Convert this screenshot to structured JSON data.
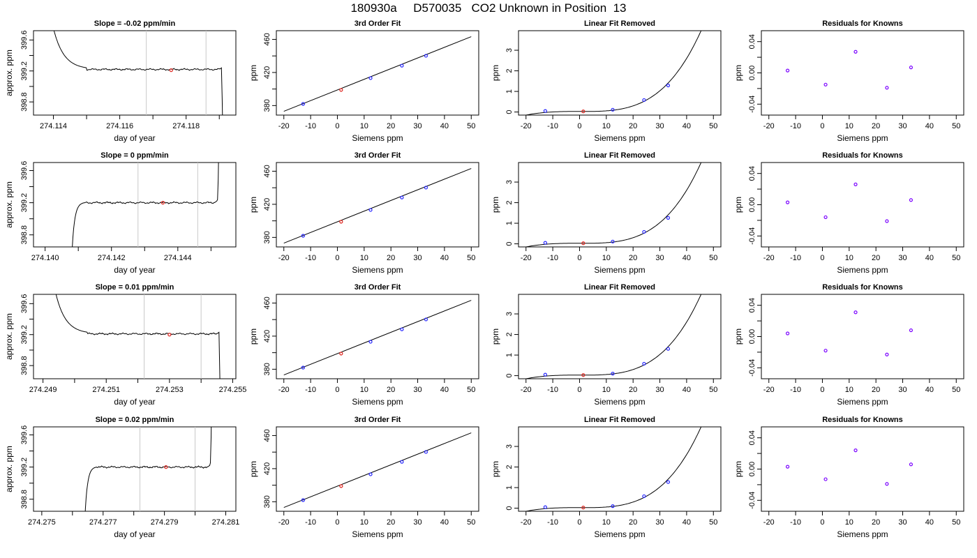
{
  "title": "180930a     D570035   CO2 Unknown in Position  13",
  "colors": {
    "axis": "#000000",
    "trace": "#000000",
    "vline": "#c8c8c8",
    "known_point": "#2424ff",
    "unknown_point": "#e0302a",
    "residual_point": "#7a00ff"
  },
  "chart_data": [
    {
      "panel": "timeseries",
      "row": 0,
      "type": "line",
      "title": "Slope =  -0.02  ppm/min",
      "xlabel": "day of year",
      "ylabel": "approx. ppm",
      "xlim": [
        274.1134,
        274.1195
      ],
      "ylim": [
        398.63,
        399.72
      ],
      "xticks": [
        274.114,
        274.116,
        274.118
      ],
      "xminor": [
        274.115,
        274.117,
        274.119
      ],
      "yticks": [
        398.8,
        399.2,
        399.6
      ],
      "yminor": [
        399.0,
        399.4
      ],
      "vlines": [
        274.1168,
        274.1186
      ],
      "start": "high",
      "end": "drop",
      "rise_x": 274.1137,
      "fall_x": 274.1191,
      "plateau": [
        274.115,
        274.119
      ],
      "level": 399.22,
      "marker": [
        274.11755,
        399.21
      ]
    },
    {
      "panel": "fit",
      "row": 0,
      "type": "line",
      "title": "3rd Order Fit",
      "xlabel": "Siemens ppm",
      "ylabel": "ppm",
      "xlim": [
        -22.8,
        52.8
      ],
      "ylim": [
        368.5,
        470.5
      ],
      "xticks": [
        -20,
        -10,
        0,
        10,
        20,
        30,
        40,
        50
      ],
      "yticks": [
        380,
        420,
        460
      ],
      "yminor": [
        400,
        440
      ],
      "line": [
        [
          -20,
          373.1
        ],
        [
          50,
          463.3
        ]
      ],
      "knowns": [
        [
          -12.8,
          382.0
        ],
        [
          12.4,
          413.2
        ],
        [
          24.1,
          428.2
        ],
        [
          33.1,
          440.2
        ]
      ],
      "unknown": [
        [
          1.4,
          398.9
        ]
      ]
    },
    {
      "panel": "removed",
      "row": 0,
      "type": "line",
      "title": "Linear Fit Removed",
      "xlabel": "Siemens ppm",
      "ylabel": "ppm",
      "xlim": [
        -22.8,
        52.8
      ],
      "ylim": [
        -0.15,
        3.95
      ],
      "xticks": [
        -20,
        -10,
        0,
        10,
        20,
        30,
        40,
        50
      ],
      "yticks": [
        0,
        1,
        2,
        3
      ],
      "curve": {
        "a": 0.0262,
        "b": -0.00021,
        "c": 2.84e-05,
        "d": 3e-07
      },
      "knowns": [
        [
          -12.8,
          0.05
        ],
        [
          12.4,
          0.11
        ],
        [
          24.1,
          0.58
        ],
        [
          33.1,
          1.29
        ]
      ],
      "unknown": [
        [
          1.4,
          0.03
        ]
      ]
    },
    {
      "panel": "residuals",
      "row": 0,
      "type": "scatter",
      "title": "Residuals for Knowns",
      "xlabel": "Siemens ppm",
      "ylabel": "ppm",
      "xlim": [
        -22.8,
        52.8
      ],
      "ylim": [
        -0.054,
        0.054
      ],
      "xticks": [
        -20,
        -10,
        0,
        10,
        20,
        30,
        40,
        50
      ],
      "yticks": [
        -0.04,
        0.0,
        0.04
      ],
      "yminor": [
        -0.02,
        0.02
      ],
      "points": [
        [
          -13,
          0.003
        ],
        [
          1.2,
          -0.015
        ],
        [
          12.4,
          0.027
        ],
        [
          24.1,
          -0.019
        ],
        [
          33.1,
          0.007
        ]
      ]
    },
    {
      "panel": "timeseries",
      "row": 1,
      "type": "line",
      "title": "Slope =  0  ppm/min",
      "xlabel": "day of year",
      "ylabel": "approx. ppm",
      "xlim": [
        274.13965,
        274.14575
      ],
      "ylim": [
        398.65,
        399.7
      ],
      "xticks": [
        274.14,
        274.142,
        274.144
      ],
      "xminor": [
        274.141,
        274.143,
        274.145
      ],
      "yticks": [
        398.8,
        399.2,
        399.6
      ],
      "yminor": [
        399.0,
        399.4
      ],
      "vlines": [
        274.1428,
        274.1446
      ],
      "start": "rise",
      "end": "rise",
      "rise_x": 274.1408,
      "fall_x": 274.14525,
      "plateau": [
        274.1412,
        274.1451
      ],
      "level": 399.2,
      "marker": [
        274.14355,
        399.2
      ]
    },
    {
      "panel": "fit",
      "row": 1,
      "type": "line",
      "title": "3rd Order Fit",
      "xlabel": "Siemens ppm",
      "ylabel": "ppm",
      "xlim": [
        -22.8,
        52.8
      ],
      "ylim": [
        368.5,
        470.5
      ],
      "xticks": [
        -20,
        -10,
        0,
        10,
        20,
        30,
        40,
        50
      ],
      "yticks": [
        380,
        420,
        460
      ],
      "yminor": [
        400,
        440
      ],
      "line": [
        [
          -20,
          373.1
        ],
        [
          50,
          463.3
        ]
      ],
      "knowns": [
        [
          -12.8,
          382.0
        ],
        [
          12.4,
          413.2
        ],
        [
          24.1,
          428.2
        ],
        [
          33.1,
          440.2
        ]
      ],
      "unknown": [
        [
          1.4,
          398.9
        ]
      ]
    },
    {
      "panel": "removed",
      "row": 1,
      "type": "line",
      "title": "Linear Fit Removed",
      "xlabel": "Siemens ppm",
      "ylabel": "ppm",
      "xlim": [
        -22.8,
        52.8
      ],
      "ylim": [
        -0.15,
        3.95
      ],
      "xticks": [
        -20,
        -10,
        0,
        10,
        20,
        30,
        40,
        50
      ],
      "yticks": [
        0,
        1,
        2,
        3
      ],
      "curve": {
        "a": 0.0262,
        "b": -0.00021,
        "c": 2.84e-05,
        "d": 3e-07
      },
      "knowns": [
        [
          -12.8,
          0.05
        ],
        [
          12.4,
          0.11
        ],
        [
          24.1,
          0.58
        ],
        [
          33.1,
          1.26
        ]
      ],
      "unknown": [
        [
          1.4,
          0.03
        ]
      ]
    },
    {
      "panel": "residuals",
      "row": 1,
      "type": "scatter",
      "title": "Residuals for Knowns",
      "xlabel": "Siemens ppm",
      "ylabel": "ppm",
      "xlim": [
        -22.8,
        52.8
      ],
      "ylim": [
        -0.054,
        0.054
      ],
      "xticks": [
        -20,
        -10,
        0,
        10,
        20,
        30,
        40,
        50
      ],
      "yticks": [
        -0.04,
        0.0,
        0.04
      ],
      "yminor": [
        -0.02,
        0.02
      ],
      "points": [
        [
          -13,
          0.003
        ],
        [
          1.2,
          -0.016
        ],
        [
          12.4,
          0.026
        ],
        [
          24.1,
          -0.021
        ],
        [
          33.1,
          0.006
        ]
      ]
    },
    {
      "panel": "timeseries",
      "row": 2,
      "type": "line",
      "title": "Slope =  0.01  ppm/min",
      "xlabel": "day of year",
      "ylabel": "approx. ppm",
      "xlim": [
        274.2487,
        274.2551
      ],
      "ylim": [
        398.63,
        399.72
      ],
      "xticks": [
        274.249,
        274.251,
        274.253,
        274.255
      ],
      "xminor": [
        274.25,
        274.252,
        274.254
      ],
      "yticks": [
        398.8,
        399.2,
        399.6
      ],
      "yminor": [
        399.0,
        399.4
      ],
      "vlines": [
        274.2522,
        274.254
      ],
      "start": "high",
      "end": "drop",
      "rise_x": 274.2491,
      "fall_x": 274.2546,
      "plateau": [
        274.2504,
        274.2545
      ],
      "level": 399.21,
      "marker": [
        274.253,
        399.2
      ]
    },
    {
      "panel": "fit",
      "row": 2,
      "type": "line",
      "title": "3rd Order Fit",
      "xlabel": "Siemens ppm",
      "ylabel": "ppm",
      "xlim": [
        -22.8,
        52.8
      ],
      "ylim": [
        368.5,
        470.5
      ],
      "xticks": [
        -20,
        -10,
        0,
        10,
        20,
        30,
        40,
        50
      ],
      "yticks": [
        380,
        420,
        460
      ],
      "yminor": [
        400,
        440
      ],
      "line": [
        [
          -20,
          373.1
        ],
        [
          50,
          463.3
        ]
      ],
      "knowns": [
        [
          -12.8,
          382.0
        ],
        [
          12.4,
          413.2
        ],
        [
          24.1,
          428.2
        ],
        [
          33.1,
          440.2
        ]
      ],
      "unknown": [
        [
          1.4,
          398.9
        ]
      ]
    },
    {
      "panel": "removed",
      "row": 2,
      "type": "line",
      "title": "Linear Fit Removed",
      "xlabel": "Siemens ppm",
      "ylabel": "ppm",
      "xlim": [
        -22.8,
        52.8
      ],
      "ylim": [
        -0.15,
        3.95
      ],
      "xticks": [
        -20,
        -10,
        0,
        10,
        20,
        30,
        40,
        50
      ],
      "yticks": [
        0,
        1,
        2,
        3
      ],
      "curve": {
        "a": 0.0262,
        "b": -0.00021,
        "c": 2.84e-05,
        "d": 3e-07
      },
      "knowns": [
        [
          -12.8,
          0.05
        ],
        [
          12.4,
          0.1
        ],
        [
          24.1,
          0.58
        ],
        [
          33.1,
          1.3
        ]
      ],
      "unknown": [
        [
          1.4,
          0.03
        ]
      ]
    },
    {
      "panel": "residuals",
      "row": 2,
      "type": "scatter",
      "title": "Residuals for Knowns",
      "xlabel": "Siemens ppm",
      "ylabel": "ppm",
      "xlim": [
        -22.8,
        52.8
      ],
      "ylim": [
        -0.054,
        0.054
      ],
      "xticks": [
        -20,
        -10,
        0,
        10,
        20,
        30,
        40,
        50
      ],
      "yticks": [
        -0.04,
        0.0,
        0.04
      ],
      "yminor": [
        -0.02,
        0.02
      ],
      "points": [
        [
          -13,
          0.004
        ],
        [
          1.2,
          -0.018
        ],
        [
          12.4,
          0.031
        ],
        [
          24.1,
          -0.023
        ],
        [
          33.1,
          0.008
        ]
      ]
    },
    {
      "panel": "timeseries",
      "row": 3,
      "type": "line",
      "title": "Slope =  0.02  ppm/min",
      "xlabel": "day of year",
      "ylabel": "approx. ppm",
      "xlim": [
        274.27473,
        274.28133
      ],
      "ylim": [
        398.65,
        399.7
      ],
      "xticks": [
        274.275,
        274.277,
        274.279,
        274.281
      ],
      "xminor": [
        274.276,
        274.278,
        274.28
      ],
      "yticks": [
        398.8,
        399.2,
        399.6
      ],
      "yminor": [
        399.0,
        399.4
      ],
      "vlines": [
        274.2782,
        274.28
      ],
      "start": "rise",
      "end": "rise",
      "rise_x": 274.2764,
      "fall_x": 274.28055,
      "plateau": [
        274.2768,
        274.2804
      ],
      "level": 399.2,
      "marker": [
        274.27905,
        399.2
      ]
    },
    {
      "panel": "fit",
      "row": 3,
      "type": "line",
      "title": "3rd Order Fit",
      "xlabel": "Siemens ppm",
      "ylabel": "ppm",
      "xlim": [
        -22.8,
        52.8
      ],
      "ylim": [
        368.5,
        470.5
      ],
      "xticks": [
        -20,
        -10,
        0,
        10,
        20,
        30,
        40,
        50
      ],
      "yticks": [
        380,
        420,
        460
      ],
      "yminor": [
        400,
        440
      ],
      "line": [
        [
          -20,
          373.1
        ],
        [
          50,
          463.3
        ]
      ],
      "knowns": [
        [
          -12.8,
          382.0
        ],
        [
          12.4,
          413.2
        ],
        [
          24.1,
          428.2
        ],
        [
          33.1,
          440.2
        ]
      ],
      "unknown": [
        [
          1.4,
          398.9
        ]
      ]
    },
    {
      "panel": "removed",
      "row": 3,
      "type": "line",
      "title": "Linear Fit Removed",
      "xlabel": "Siemens ppm",
      "ylabel": "ppm",
      "xlim": [
        -22.8,
        52.8
      ],
      "ylim": [
        -0.15,
        3.95
      ],
      "xticks": [
        -20,
        -10,
        0,
        10,
        20,
        30,
        40,
        50
      ],
      "yticks": [
        0,
        1,
        2,
        3
      ],
      "curve": {
        "a": 0.0262,
        "b": -0.00021,
        "c": 2.84e-05,
        "d": 3e-07
      },
      "knowns": [
        [
          -12.8,
          0.05
        ],
        [
          12.4,
          0.1
        ],
        [
          24.1,
          0.58
        ],
        [
          33.1,
          1.27
        ]
      ],
      "unknown": [
        [
          1.4,
          0.03
        ]
      ]
    },
    {
      "panel": "residuals",
      "row": 3,
      "type": "scatter",
      "title": "Residuals for Knowns",
      "xlabel": "Siemens ppm",
      "ylabel": "ppm",
      "xlim": [
        -22.8,
        52.8
      ],
      "ylim": [
        -0.054,
        0.054
      ],
      "xticks": [
        -20,
        -10,
        0,
        10,
        20,
        30,
        40,
        50
      ],
      "yticks": [
        -0.04,
        0.0,
        0.04
      ],
      "yminor": [
        -0.02,
        0.02
      ],
      "points": [
        [
          -13,
          0.003
        ],
        [
          1.2,
          -0.013
        ],
        [
          12.4,
          0.024
        ],
        [
          24.1,
          -0.019
        ],
        [
          33.1,
          0.006
        ]
      ]
    }
  ]
}
